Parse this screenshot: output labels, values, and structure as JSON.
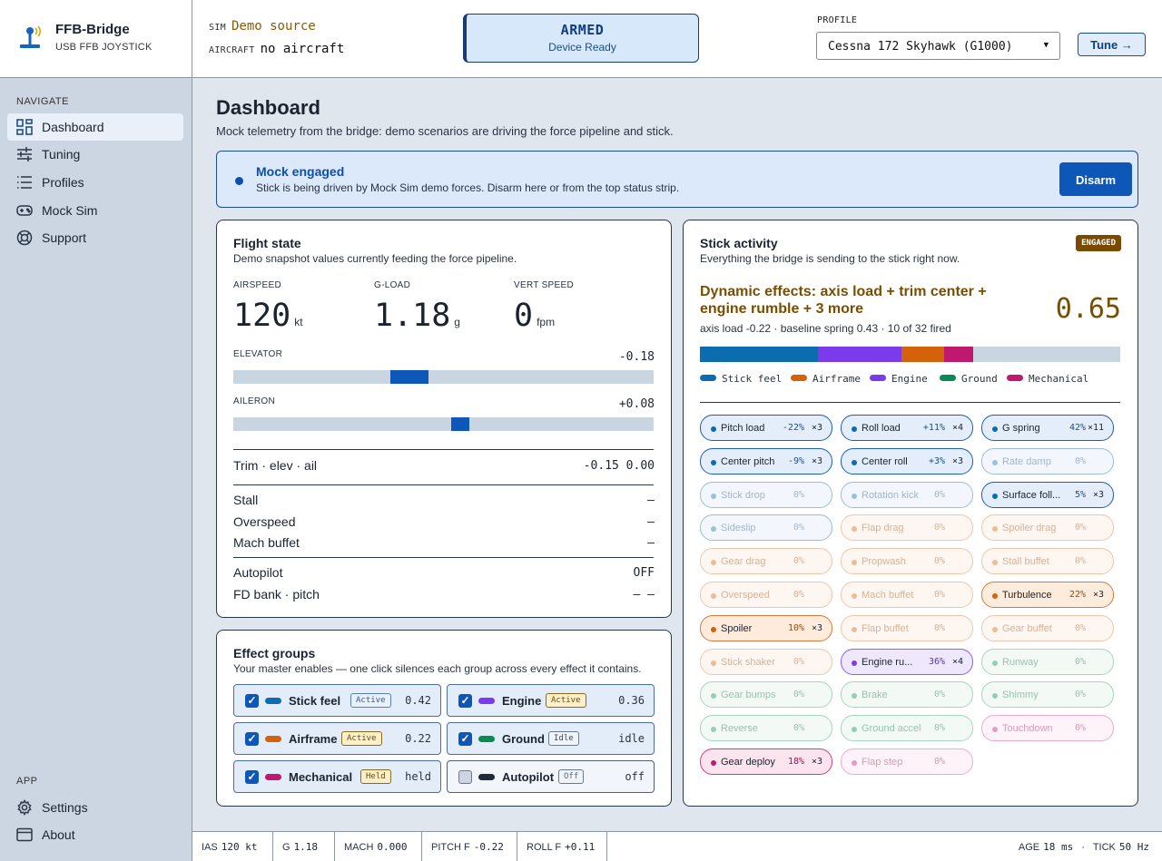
{
  "brand": {
    "title": "FFB-Bridge",
    "subtitle": "USB FFB JOYSTICK"
  },
  "top": {
    "sim_key": "SIM",
    "sim_value": "Demo source",
    "aircraft_key": "AIRCRAFT",
    "aircraft_value": "no aircraft",
    "armed_title": "ARMED",
    "armed_sub": "Device Ready",
    "profile_label": "PROFILE",
    "profile_value": "Cessna 172 Skyhawk (G1000)",
    "tune_label": "Tune →"
  },
  "sidebar": {
    "nav_header": "NAVIGATE",
    "nav": [
      {
        "label": "Dashboard",
        "icon": "grid-icon",
        "active": true
      },
      {
        "label": "Tuning",
        "icon": "sliders-icon"
      },
      {
        "label": "Profiles",
        "icon": "list-icon"
      },
      {
        "label": "Mock Sim",
        "icon": "gamepad-icon"
      },
      {
        "label": "Support",
        "icon": "lifebuoy-icon"
      }
    ],
    "app_header": "APP",
    "app": [
      {
        "label": "Settings",
        "icon": "gear-icon"
      },
      {
        "label": "About",
        "icon": "window-icon"
      }
    ]
  },
  "page": {
    "title": "Dashboard",
    "subtitle": "Mock telemetry from the bridge: demo scenarios are driving the force pipeline and stick."
  },
  "banner": {
    "title": "Mock engaged",
    "text": "Stick is being driven by Mock Sim demo forces. Disarm here or from the top status strip.",
    "button": "Disarm"
  },
  "flight": {
    "title": "Flight state",
    "subtitle": "Demo snapshot values currently feeding the force pipeline.",
    "metrics": [
      {
        "label": "AIRSPEED",
        "value": "120",
        "unit": "kt"
      },
      {
        "label": "G-LOAD",
        "value": "1.18",
        "unit": "g"
      },
      {
        "label": "VERT SPEED",
        "value": "0",
        "unit": "fpm"
      }
    ],
    "elevator": {
      "label": "ELEVATOR",
      "value": "-0.18",
      "position": -0.18
    },
    "aileron": {
      "label": "AILERON",
      "value": "+0.08",
      "position": 0.08
    },
    "trim": {
      "label": "Trim · elev · ail",
      "value": "-0.15 0.00"
    },
    "warnings": [
      {
        "label": "Stall",
        "value": "–"
      },
      {
        "label": "Overspeed",
        "value": "–"
      },
      {
        "label": "Mach buffet",
        "value": "–"
      }
    ],
    "autopilot": {
      "label": "Autopilot",
      "value": "OFF"
    },
    "fd": {
      "label": "FD bank · pitch",
      "value": "– –"
    }
  },
  "effect_groups": {
    "title": "Effect groups",
    "subtitle": "Your master enables — one click silences each group across every effect it contains.",
    "items": [
      {
        "name": "Stick feel",
        "badge": "Active",
        "badge_style": "active",
        "value": "0.42",
        "color": "#0b6db0",
        "checked": true
      },
      {
        "name": "Engine",
        "badge": "Active",
        "badge_style": "activey",
        "value": "0.36",
        "color": "#7c3aed",
        "checked": true
      },
      {
        "name": "Airframe",
        "badge": "Active",
        "badge_style": "activey",
        "value": "0.22",
        "color": "#d4620a",
        "checked": true
      },
      {
        "name": "Ground",
        "badge": "Idle",
        "badge_style": "idle",
        "value": "idle",
        "color": "#0a8a52",
        "checked": true
      },
      {
        "name": "Mechanical",
        "badge": "Held",
        "badge_style": "held",
        "value": "held",
        "color": "#c0186e",
        "checked": true
      },
      {
        "name": "Autopilot",
        "badge": "Off",
        "badge_style": "off",
        "value": "off",
        "color": "#1f2a3a",
        "checked": false
      }
    ]
  },
  "stick": {
    "title": "Stick activity",
    "subtitle": "Everything the bridge is sending to the stick right now.",
    "badge": "ENGAGED",
    "dynamic_title": "Dynamic effects: axis load + trim center + engine rumble + 3 more",
    "dynamic_value": "0.65",
    "dynamic_sub": "axis load -0.22 · baseline spring 0.43 · 10 of 32 fired",
    "mix": [
      {
        "name": "Stick feel",
        "color": "#0b6db0",
        "fraction": 0.28
      },
      {
        "name": "Engine",
        "color": "#7c3aed",
        "fraction": 0.2
      },
      {
        "name": "Airframe",
        "color": "#d4620a",
        "fraction": 0.1
      },
      {
        "name": "Mechanical",
        "color": "#c0186e",
        "fraction": 0.07
      }
    ],
    "legend": [
      {
        "name": "Stick feel",
        "color": "#0b6db0"
      },
      {
        "name": "Airframe",
        "color": "#d4620a"
      },
      {
        "name": "Engine",
        "color": "#7c3aed"
      },
      {
        "name": "Ground",
        "color": "#0a8a52"
      },
      {
        "name": "Mechanical",
        "color": "#c0186e"
      }
    ],
    "effects": [
      {
        "name": "Pitch load",
        "pct": "-22%",
        "count": "×3",
        "group": "stick",
        "active": true
      },
      {
        "name": "Roll load",
        "pct": "+11%",
        "count": "×4",
        "group": "stick",
        "active": true
      },
      {
        "name": "G spring",
        "pct": "42%",
        "count": "×11",
        "group": "stick",
        "active": true
      },
      {
        "name": "Center pitch",
        "pct": "-9%",
        "count": "×3",
        "group": "stick",
        "active": true
      },
      {
        "name": "Center roll",
        "pct": "+3%",
        "count": "×3",
        "group": "stick",
        "active": true
      },
      {
        "name": "Rate damp",
        "pct": "0%",
        "count": "",
        "group": "stick",
        "active": false
      },
      {
        "name": "Stick drop",
        "pct": "0%",
        "count": "",
        "group": "stick",
        "active": false
      },
      {
        "name": "Rotation kick",
        "pct": "0%",
        "count": "",
        "group": "stick",
        "active": false
      },
      {
        "name": "Surface foll...",
        "pct": "5%",
        "count": "×3",
        "group": "stick",
        "active": true
      },
      {
        "name": "Sideslip",
        "pct": "0%",
        "count": "",
        "group": "stick",
        "active": false
      },
      {
        "name": "Flap drag",
        "pct": "0%",
        "count": "",
        "group": "airframe",
        "active": false
      },
      {
        "name": "Spoiler drag",
        "pct": "0%",
        "count": "",
        "group": "airframe",
        "active": false
      },
      {
        "name": "Gear drag",
        "pct": "0%",
        "count": "",
        "group": "airframe",
        "active": false
      },
      {
        "name": "Propwash",
        "pct": "0%",
        "count": "",
        "group": "airframe",
        "active": false
      },
      {
        "name": "Stall buffet",
        "pct": "0%",
        "count": "",
        "group": "airframe",
        "active": false
      },
      {
        "name": "Overspeed",
        "pct": "0%",
        "count": "",
        "group": "airframe",
        "active": false
      },
      {
        "name": "Mach buffet",
        "pct": "0%",
        "count": "",
        "group": "airframe",
        "active": false
      },
      {
        "name": "Turbulence",
        "pct": "22%",
        "count": "×3",
        "group": "airframe",
        "active": true
      },
      {
        "name": "Spoiler",
        "pct": "10%",
        "count": "×3",
        "group": "airframe",
        "active": true
      },
      {
        "name": "Flap buffet",
        "pct": "0%",
        "count": "",
        "group": "airframe",
        "active": false
      },
      {
        "name": "Gear buffet",
        "pct": "0%",
        "count": "",
        "group": "airframe",
        "active": false
      },
      {
        "name": "Stick shaker",
        "pct": "0%",
        "count": "",
        "group": "airframe",
        "active": false
      },
      {
        "name": "Engine ru...",
        "pct": "36%",
        "count": "×4",
        "group": "engine",
        "active": true
      },
      {
        "name": "Runway",
        "pct": "0%",
        "count": "",
        "group": "ground",
        "active": false
      },
      {
        "name": "Gear bumps",
        "pct": "0%",
        "count": "",
        "group": "ground",
        "active": false
      },
      {
        "name": "Brake",
        "pct": "0%",
        "count": "",
        "group": "ground",
        "active": false
      },
      {
        "name": "Shimmy",
        "pct": "0%",
        "count": "",
        "group": "ground",
        "active": false
      },
      {
        "name": "Reverse",
        "pct": "0%",
        "count": "",
        "group": "ground",
        "active": false
      },
      {
        "name": "Ground accel",
        "pct": "0%",
        "count": "",
        "group": "ground",
        "active": false
      },
      {
        "name": "Touchdown",
        "pct": "0%",
        "count": "",
        "group": "mech",
        "active": false
      },
      {
        "name": "Gear deploy",
        "pct": "18%",
        "count": "×3",
        "group": "mech",
        "active": true
      },
      {
        "name": "Flap step",
        "pct": "0%",
        "count": "",
        "group": "mech",
        "active": false
      }
    ]
  },
  "statusbar": {
    "items": [
      {
        "key": "IAS",
        "value": "120 kt"
      },
      {
        "key": "G",
        "value": "1.18"
      },
      {
        "key": "MACH",
        "value": "0.000"
      },
      {
        "key": "PITCH F",
        "value": "-0.22"
      },
      {
        "key": "ROLL F",
        "value": "+0.11"
      }
    ],
    "age_key": "AGE",
    "age_value": "18 ms",
    "tick_key": "TICK",
    "tick_value": "50 Hz"
  },
  "colors": {
    "accent": "#0d57b8",
    "stick": {
      "border": "#1d5fa8",
      "bg": "#e4eefb",
      "dot": "#0b6db0",
      "text": "#1b4f86"
    },
    "airframe": {
      "border": "#d97a3a",
      "bg": "#fdebdc",
      "dot": "#d4620a",
      "text": "#9a4a10"
    },
    "engine": {
      "border": "#8b5cf6",
      "bg": "#efe8fd",
      "dot": "#7c3aed",
      "text": "#5b2bc0"
    },
    "ground": {
      "border": "#2e9e68",
      "bg": "#e3f5ec",
      "dot": "#0a8a52",
      "text": "#0a6a3e"
    },
    "mech": {
      "border": "#d33a85",
      "bg": "#fce4ef",
      "dot": "#c0186e",
      "text": "#9a1258"
    }
  }
}
